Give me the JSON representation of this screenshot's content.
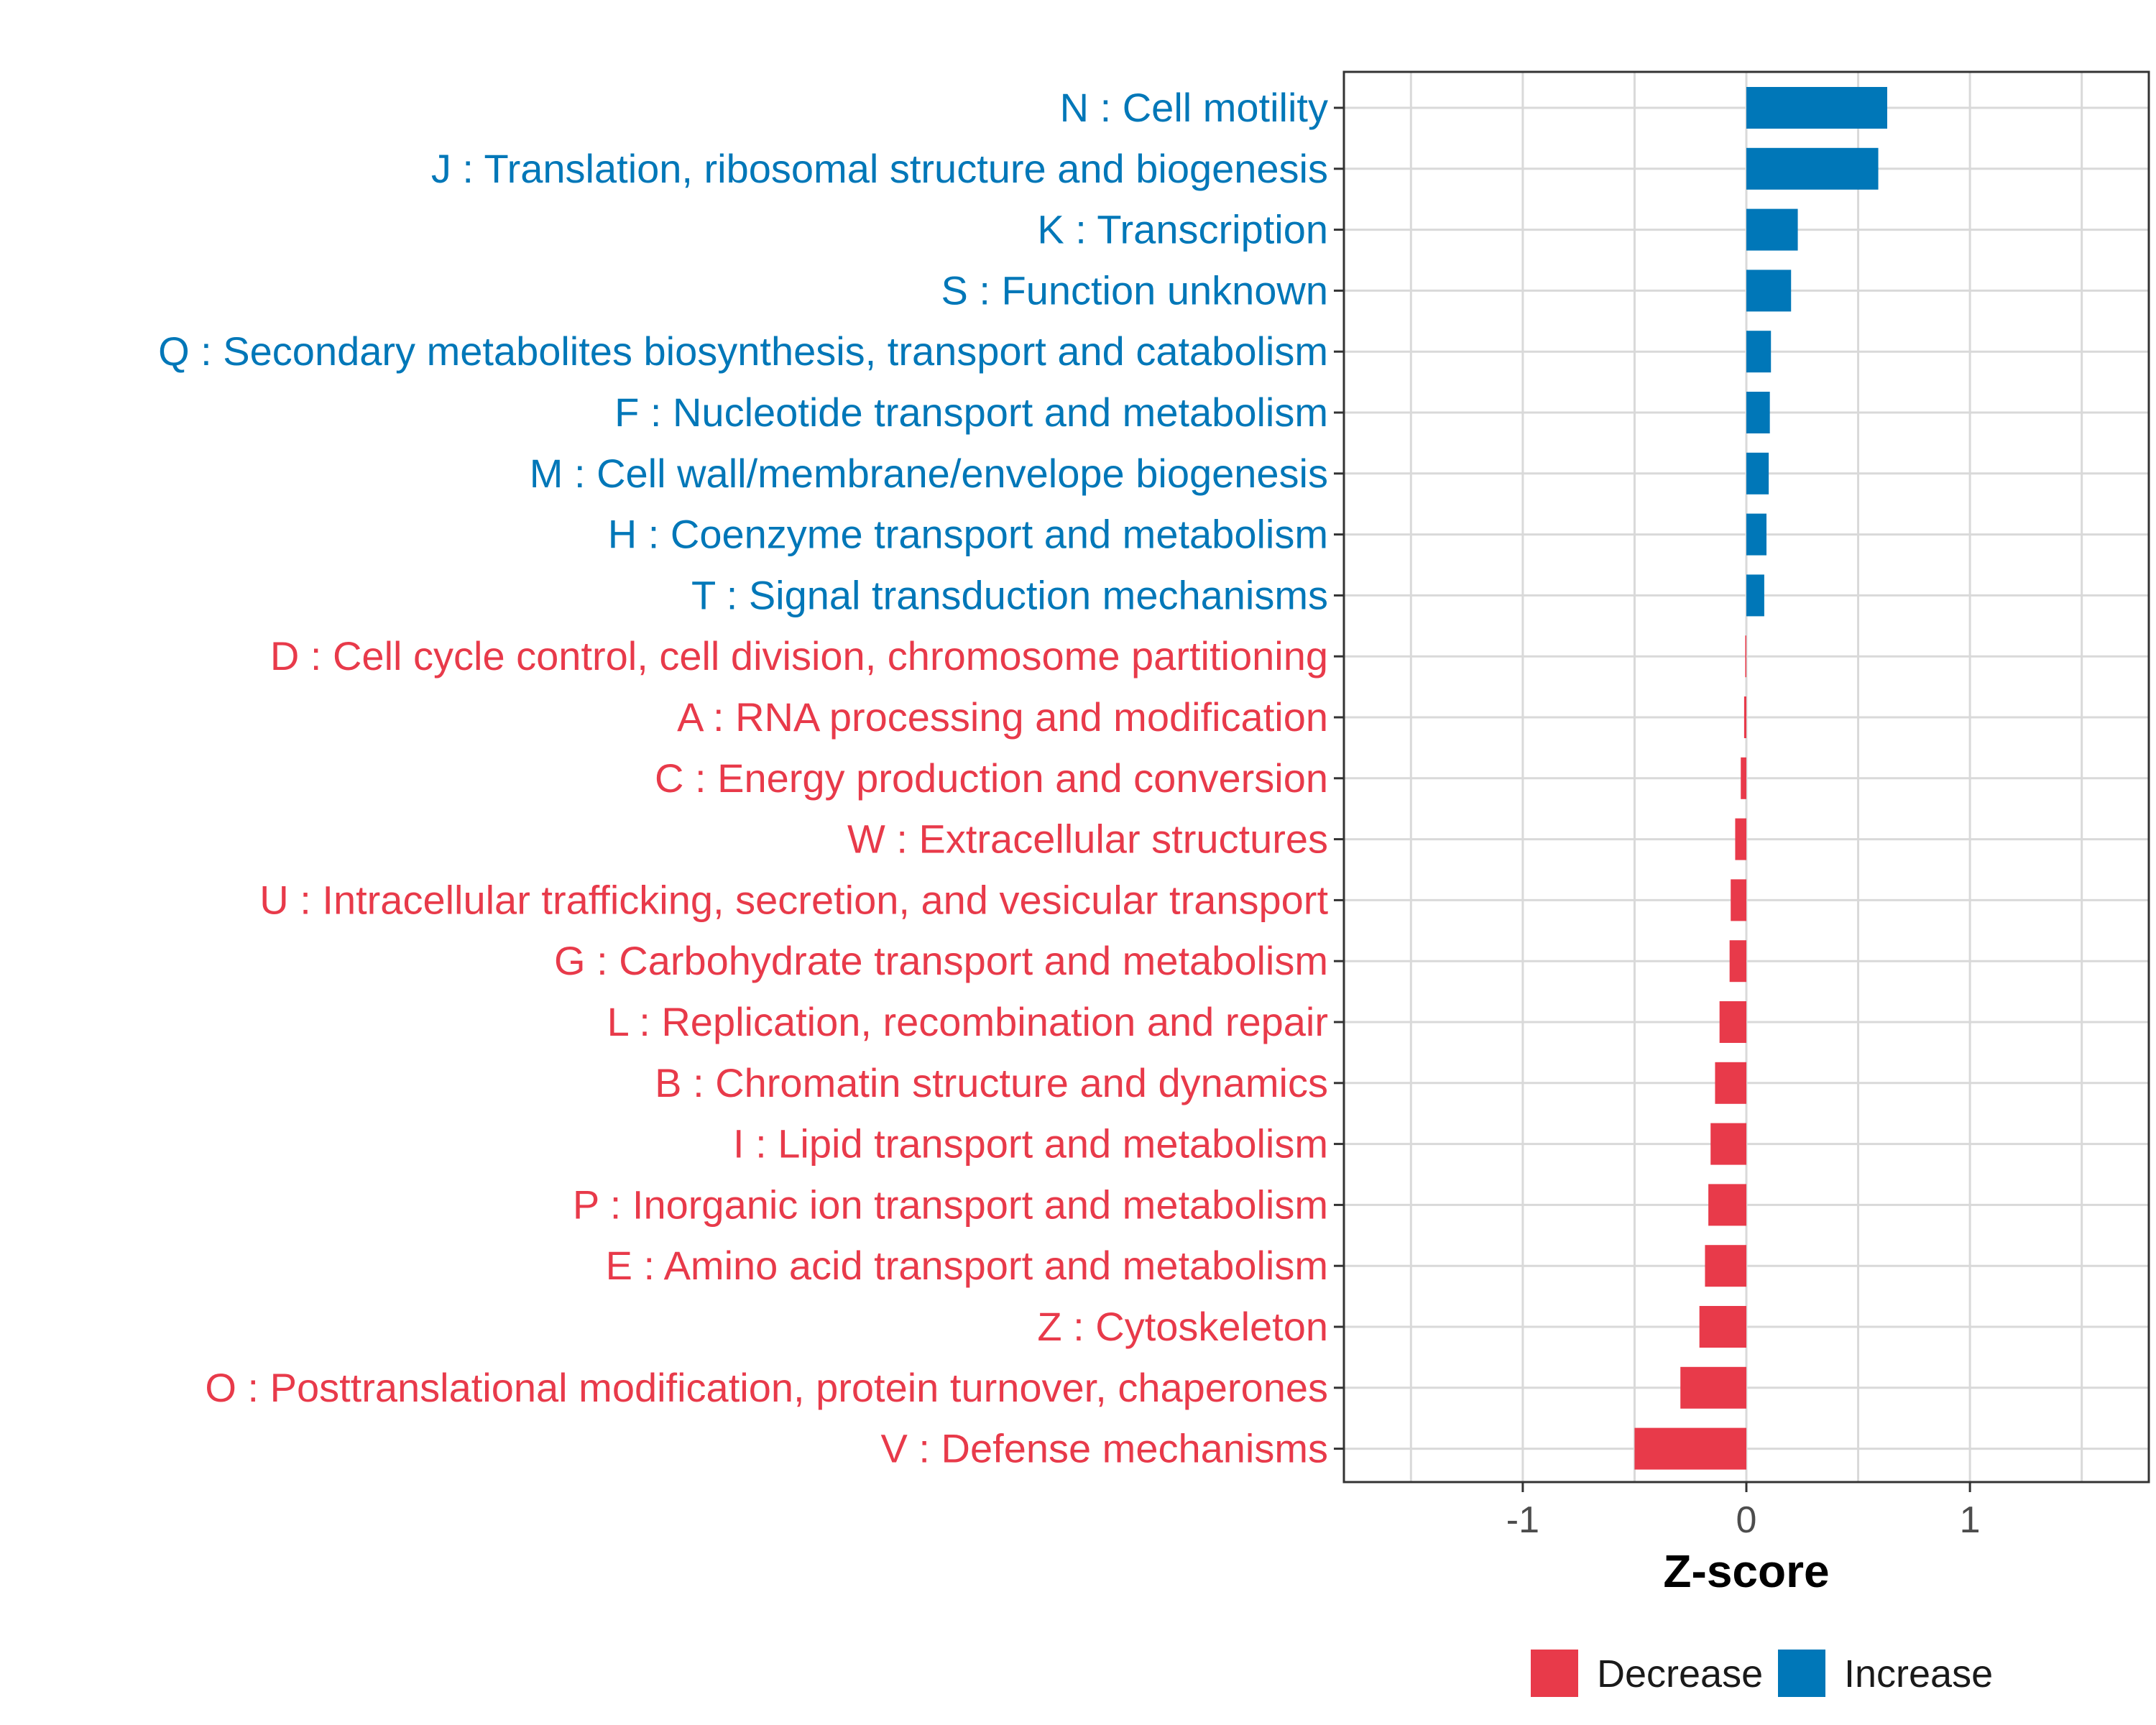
{
  "colors": {
    "increase": "#0077B8",
    "decrease": "#E83A4A",
    "grid": "#d9d9d9",
    "panel_border": "#333333"
  },
  "chart_data": {
    "type": "bar",
    "orientation": "horizontal",
    "title": "",
    "xlabel": "Z-score",
    "ylabel": "",
    "xlim": [
      -1.8,
      1.8
    ],
    "xticks": [
      -1,
      0,
      1
    ],
    "xtick_labels": [
      "-1",
      "0",
      "1"
    ],
    "grid": true,
    "legend_position": "bottom",
    "legend": [
      {
        "name": "Decrease",
        "color": "#E83A4A"
      },
      {
        "name": "Increase",
        "color": "#0077B8"
      }
    ],
    "categories": [
      "N : Cell motility",
      "J : Translation, ribosomal structure and biogenesis",
      "K : Transcription",
      "S : Function unknown",
      "Q : Secondary metabolites biosynthesis, transport and catabolism",
      "F : Nucleotide transport and metabolism",
      "M : Cell wall/membrane/envelope biogenesis",
      "H : Coenzyme transport and metabolism",
      "T : Signal transduction mechanisms",
      "D : Cell cycle control, cell division, chromosome partitioning",
      "A : RNA processing and modification",
      "C : Energy production and conversion",
      "W : Extracellular structures",
      "U : Intracellular trafficking, secretion, and vesicular transport",
      "G : Carbohydrate transport and metabolism",
      "L : Replication, recombination and repair",
      "B : Chromatin structure and dynamics",
      "I : Lipid transport and metabolism",
      "P : Inorganic ion transport and metabolism",
      "E : Amino acid transport and metabolism",
      "Z : Cytoskeleton",
      "O : Posttranslational modification, protein turnover, chaperones",
      "V : Defense mechanisms"
    ],
    "values": [
      0.63,
      0.59,
      0.23,
      0.2,
      0.11,
      0.105,
      0.1,
      0.09,
      0.08,
      -0.005,
      -0.01,
      -0.025,
      -0.05,
      -0.07,
      -0.075,
      -0.12,
      -0.14,
      -0.16,
      -0.17,
      -0.185,
      -0.21,
      -0.295,
      -0.5
    ],
    "groups": [
      "Increase",
      "Increase",
      "Increase",
      "Increase",
      "Increase",
      "Increase",
      "Increase",
      "Increase",
      "Increase",
      "Decrease",
      "Decrease",
      "Decrease",
      "Decrease",
      "Decrease",
      "Decrease",
      "Decrease",
      "Decrease",
      "Decrease",
      "Decrease",
      "Decrease",
      "Decrease",
      "Decrease",
      "Decrease"
    ]
  }
}
